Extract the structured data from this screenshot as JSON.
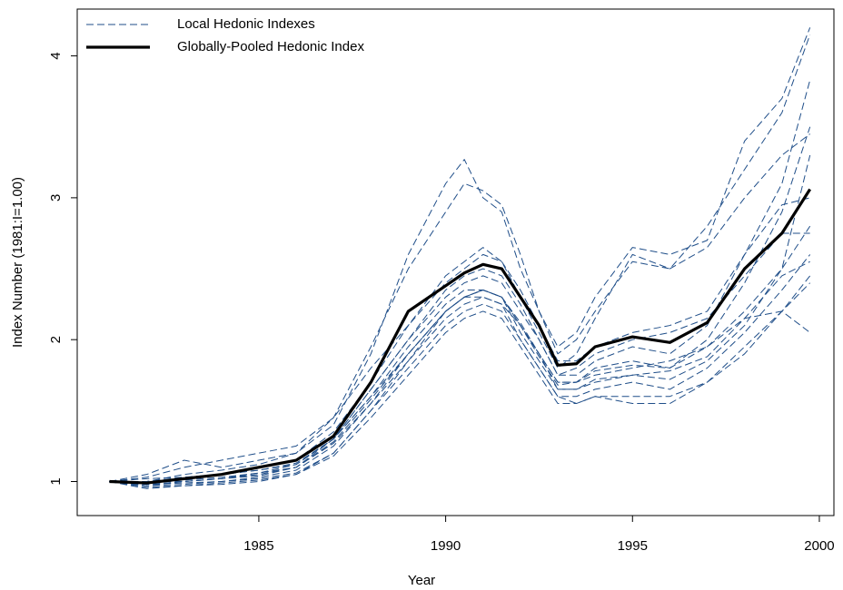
{
  "chart_data": {
    "type": "line",
    "xlabel": "Year",
    "ylabel": "Index Number (1981:I=1.00)",
    "x": [
      1981,
      1982,
      1983,
      1984,
      1985,
      1986,
      1987,
      1988,
      1989,
      1990,
      1990.5,
      1991,
      1991.5,
      1992,
      1992.5,
      1993,
      1993.5,
      1994,
      1995,
      1996,
      1997,
      1998,
      1999,
      1999.75
    ],
    "xlim": [
      1980.14,
      2000.39
    ],
    "xticks": [
      1985,
      1990,
      1995,
      2000
    ],
    "ylim": [
      0.76,
      4.33
    ],
    "yticks": [
      1,
      2,
      3,
      4
    ],
    "legend": "top-left",
    "series": [
      {
        "name": "Local Hedonic Indexes",
        "color": "#1f4e89",
        "dashed": true,
        "lines": [
          [
            1,
            1.05,
            1.15,
            1.1,
            1.15,
            1.2,
            1.4,
            1.9,
            2.6,
            3.1,
            3.27,
            3.0,
            2.9,
            2.5,
            2.2,
            1.9,
            2.0,
            2.2,
            2.55,
            2.5,
            2.8,
            3.2,
            3.6,
            4.15
          ],
          [
            1,
            1.0,
            1.05,
            1.08,
            1.12,
            1.2,
            1.45,
            1.95,
            2.5,
            2.9,
            3.1,
            3.05,
            2.95,
            2.6,
            2.2,
            1.95,
            2.05,
            2.3,
            2.65,
            2.6,
            2.7,
            3.4,
            3.7,
            4.2
          ],
          [
            1,
            0.97,
            1.0,
            1.02,
            1.05,
            1.1,
            1.3,
            1.65,
            2.0,
            2.3,
            2.4,
            2.45,
            2.4,
            2.2,
            2.0,
            1.75,
            1.75,
            1.85,
            1.95,
            1.9,
            2.1,
            2.6,
            3.1,
            3.83
          ],
          [
            1,
            0.98,
            1.0,
            1.02,
            1.06,
            1.12,
            1.3,
            1.6,
            1.95,
            2.25,
            2.35,
            2.35,
            2.3,
            2.1,
            1.9,
            1.7,
            1.7,
            1.8,
            1.85,
            1.8,
            2.0,
            2.4,
            2.9,
            3.5
          ],
          [
            1,
            0.95,
            0.97,
            0.98,
            1.0,
            1.05,
            1.2,
            1.5,
            1.85,
            2.2,
            2.3,
            2.35,
            2.3,
            2.05,
            1.85,
            1.65,
            1.65,
            1.7,
            1.75,
            1.72,
            1.85,
            2.1,
            2.5,
            3.3
          ],
          [
            1,
            1.02,
            1.03,
            1.05,
            1.08,
            1.13,
            1.3,
            1.6,
            1.9,
            2.2,
            2.3,
            2.3,
            2.25,
            2.1,
            1.9,
            1.7,
            1.7,
            1.78,
            1.82,
            1.8,
            1.95,
            2.2,
            2.5,
            2.8
          ],
          [
            1,
            0.98,
            0.99,
            1.0,
            1.03,
            1.08,
            1.25,
            1.55,
            1.85,
            2.15,
            2.25,
            2.3,
            2.25,
            2.0,
            1.8,
            1.6,
            1.6,
            1.65,
            1.7,
            1.65,
            1.8,
            2.05,
            2.35,
            2.6
          ],
          [
            1,
            0.97,
            0.98,
            1.0,
            1.02,
            1.06,
            1.2,
            1.5,
            1.8,
            2.1,
            2.2,
            2.25,
            2.2,
            2.0,
            1.8,
            1.6,
            1.55,
            1.6,
            1.6,
            1.6,
            1.7,
            1.95,
            2.2,
            2.45
          ],
          [
            1,
            1.0,
            1.0,
            1.02,
            1.04,
            1.1,
            1.28,
            1.58,
            1.9,
            2.2,
            2.3,
            2.35,
            2.3,
            2.1,
            1.88,
            1.68,
            1.7,
            1.75,
            1.8,
            1.85,
            1.95,
            2.15,
            2.2,
            2.05
          ],
          [
            1,
            1.03,
            1.1,
            1.15,
            1.2,
            1.25,
            1.45,
            1.8,
            2.1,
            2.4,
            2.5,
            2.6,
            2.55,
            2.35,
            2.1,
            1.85,
            1.85,
            1.95,
            2.05,
            2.1,
            2.2,
            2.6,
            2.95,
            3.0
          ],
          [
            1,
            1.0,
            1.02,
            1.05,
            1.1,
            1.15,
            1.35,
            1.7,
            2.1,
            2.45,
            2.55,
            2.65,
            2.55,
            2.3,
            2.05,
            1.8,
            1.9,
            2.15,
            2.6,
            2.5,
            2.65,
            3.0,
            3.3,
            3.45
          ],
          [
            1,
            0.96,
            0.97,
            0.99,
            1.01,
            1.05,
            1.18,
            1.45,
            1.75,
            2.05,
            2.15,
            2.2,
            2.15,
            1.95,
            1.75,
            1.55,
            1.55,
            1.6,
            1.55,
            1.55,
            1.7,
            1.9,
            2.2,
            2.4
          ],
          [
            1,
            1.0,
            1.03,
            1.05,
            1.08,
            1.12,
            1.3,
            1.65,
            2.0,
            2.35,
            2.45,
            2.5,
            2.45,
            2.25,
            2.0,
            1.75,
            1.8,
            1.9,
            2.0,
            2.05,
            2.15,
            2.45,
            2.75,
            2.75
          ],
          [
            1,
            0.99,
            1.01,
            1.03,
            1.06,
            1.1,
            1.27,
            1.55,
            1.9,
            2.2,
            2.3,
            2.35,
            2.3,
            2.12,
            1.9,
            1.65,
            1.65,
            1.72,
            1.75,
            1.78,
            1.88,
            2.15,
            2.45,
            2.55
          ]
        ]
      },
      {
        "name": "Globally-Pooled Hedonic Index",
        "color": "#000000",
        "dashed": false,
        "values": [
          1.0,
          0.99,
          1.02,
          1.05,
          1.1,
          1.15,
          1.32,
          1.7,
          2.2,
          2.38,
          2.47,
          2.53,
          2.5,
          2.3,
          2.1,
          1.82,
          1.83,
          1.95,
          2.02,
          1.98,
          2.12,
          2.5,
          2.75,
          3.06
        ]
      }
    ]
  }
}
